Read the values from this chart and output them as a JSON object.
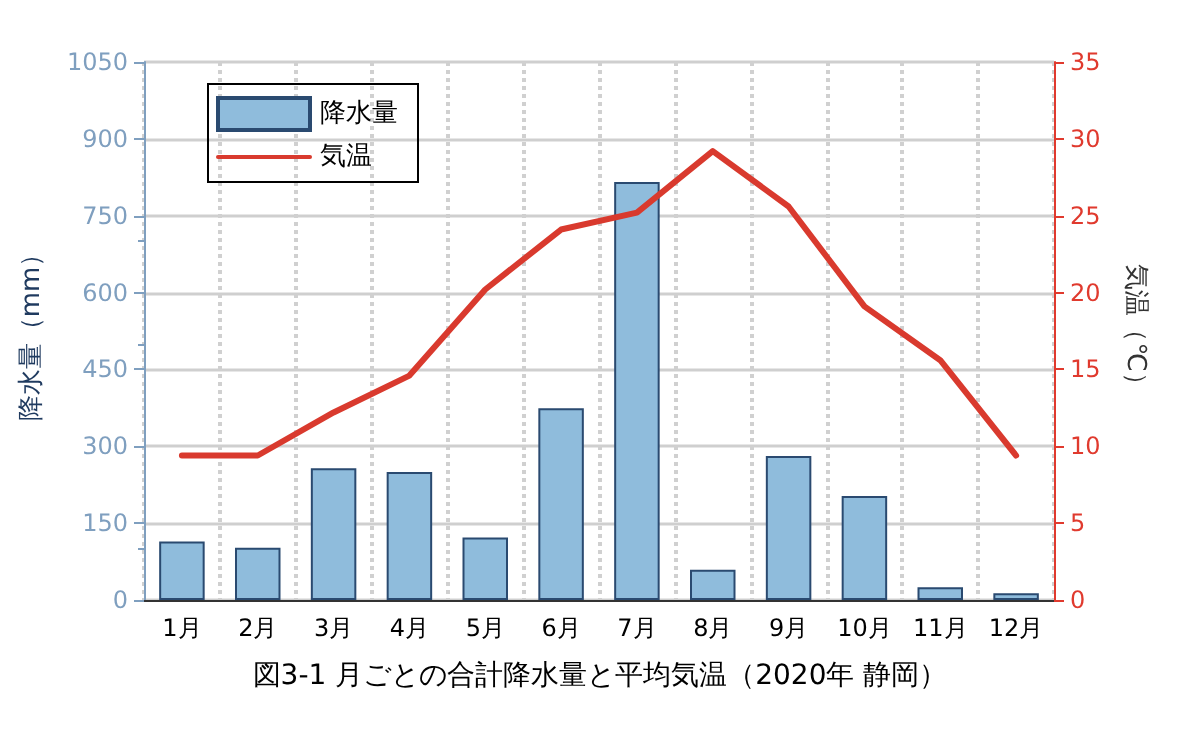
{
  "chart_data": {
    "type": "bar",
    "title": "図3-1 月ごとの合計降水量と平均気温（2020年 静岡）",
    "ylabel": "降水量（mm）",
    "y2label": "気温（℃）",
    "categories": [
      "1月",
      "2月",
      "3月",
      "4月",
      "5月",
      "6月",
      "7月",
      "8月",
      "9月",
      "10月",
      "11月",
      "12月"
    ],
    "series": [
      {
        "name": "降水量",
        "color": "#8fbcdc",
        "values": [
          114,
          102,
          257,
          250,
          122,
          374,
          816,
          59,
          281,
          203,
          25,
          13
        ]
      },
      {
        "name": "気温",
        "type": "line",
        "axis": "y2",
        "color": "#d93a2e",
        "values": [
          9.4,
          9.4,
          12.2,
          14.6,
          20.2,
          24.1,
          25.2,
          29.2,
          25.6,
          19.1,
          15.6,
          9.4
        ]
      }
    ],
    "ylim": [
      0,
      1050
    ],
    "yticks": [
      0,
      150,
      300,
      450,
      600,
      750,
      900,
      1050
    ],
    "y2lim": [
      0,
      35
    ],
    "y2ticks": [
      0,
      5,
      10,
      15,
      20,
      25,
      30,
      35
    ],
    "grid": true,
    "legend": "top left",
    "marker": "none",
    "line_style": "solid"
  }
}
